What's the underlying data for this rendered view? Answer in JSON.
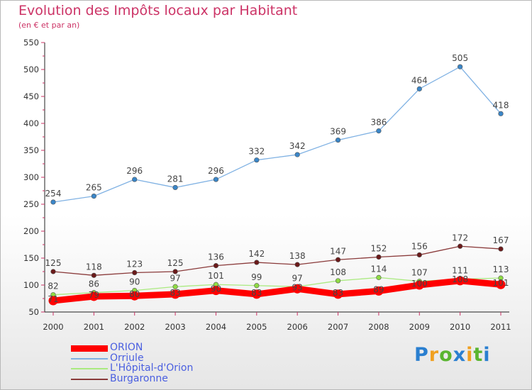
{
  "header": {
    "title": "Evolution des Impôts locaux par Habitant",
    "subtitle": "(en € et par an)"
  },
  "logo": {
    "letters": [
      "P",
      "r",
      "o",
      "x",
      "i",
      "t",
      "i"
    ],
    "colors": [
      "#2a7fd0",
      "#f0a020",
      "#59b530",
      "#2a7fd0",
      "#f0a020",
      "#59b530",
      "#2a7fd0"
    ]
  },
  "colors": {
    "title": "#cc3366",
    "axis_tick": "#cc3366",
    "legend_text": "#4a5fe0",
    "frame": "#b8b8b8"
  },
  "chart_data": {
    "type": "line",
    "categories": [
      "2000",
      "2001",
      "2002",
      "2003",
      "2004",
      "2005",
      "2006",
      "2007",
      "2008",
      "2009",
      "2010",
      "2011"
    ],
    "ylim": [
      50,
      550
    ],
    "yticks": [
      50,
      100,
      150,
      200,
      250,
      300,
      350,
      400,
      450,
      500,
      550
    ],
    "grid": false,
    "legend_position": "bottom-left",
    "series": [
      {
        "name": "ORION",
        "values": [
          71,
          79,
          80,
          83,
          90,
          83,
          93,
          83,
          89,
          100,
          108,
          101
        ],
        "color": "#ff0000",
        "marker": "#ff0000",
        "bold": true,
        "labels": [
          "71",
          "79",
          "80",
          "83",
          "90",
          "83",
          "93",
          "83",
          "89",
          "100",
          "108",
          "101"
        ]
      },
      {
        "name": "Orriule",
        "values": [
          254,
          265,
          296,
          281,
          296,
          332,
          342,
          369,
          386,
          464,
          505,
          418
        ],
        "color": "#7fb1e3",
        "marker": "#3a86c8",
        "labels": [
          "254",
          "265",
          "296",
          "281",
          "296",
          "332",
          "342",
          "369",
          "386",
          "464",
          "505",
          "418"
        ]
      },
      {
        "name": "L'Hôpital-d'Orion",
        "values": [
          82,
          86,
          90,
          97,
          101,
          99,
          97,
          108,
          114,
          107,
          111,
          113
        ],
        "color": "#aaea80",
        "marker": "#8fdc44",
        "labels": [
          "82",
          "86",
          "90",
          "97",
          "101",
          "99",
          "97",
          "108",
          "114",
          "107",
          "111",
          "113"
        ]
      },
      {
        "name": "Burgaronne",
        "values": [
          125,
          118,
          123,
          125,
          136,
          142,
          138,
          147,
          152,
          156,
          172,
          167
        ],
        "color": "#8a3a3a",
        "marker": "#6b1a1a",
        "labels": [
          "125",
          "118",
          "123",
          "125",
          "136",
          "142",
          "138",
          "147",
          "152",
          "156",
          "172",
          "167"
        ]
      }
    ]
  }
}
